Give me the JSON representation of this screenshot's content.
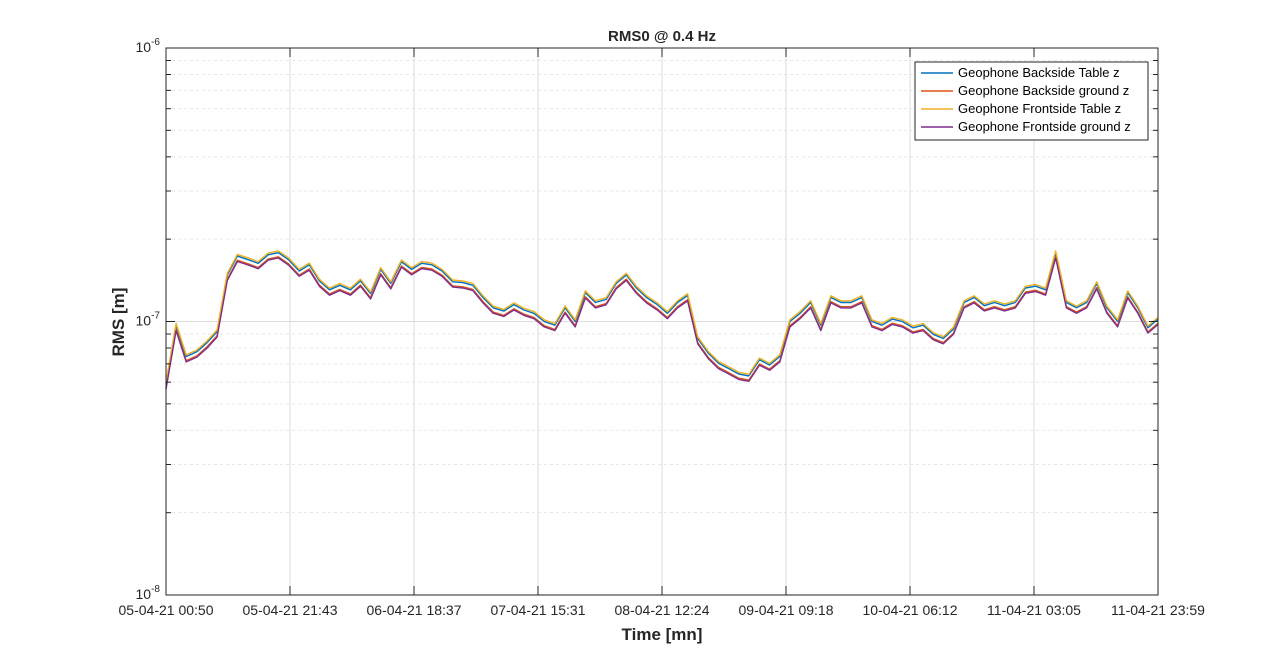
{
  "chart_data": {
    "type": "line",
    "title": "RMS0 @ 0.4 Hz",
    "xlabel": "Time [mn]",
    "ylabel": "RMS [m]",
    "yscale": "log",
    "ylim": [
      1e-08,
      1e-06
    ],
    "y_tick_labels": [
      "10^-8",
      "10^-7",
      "10^-6"
    ],
    "y_ticks": [
      {
        "value": 1e-08,
        "base": "10",
        "exp": "-8"
      },
      {
        "value": 1e-07,
        "base": "10",
        "exp": "-7"
      },
      {
        "value": 1e-06,
        "base": "10",
        "exp": "-6"
      }
    ],
    "x_tick_labels": [
      "05-04-21 00:50",
      "05-04-21 21:43",
      "06-04-21 18:37",
      "07-04-21 15:31",
      "08-04-21 12:24",
      "09-04-21 09:18",
      "10-04-21 06:12",
      "11-04-21 03:05",
      "11-04-21 23:59"
    ],
    "grid": true,
    "legend_position": "top-right",
    "series": [
      {
        "name": "Geophone Backside Table z",
        "color": "#0072BD",
        "offset": 1.02
      },
      {
        "name": "Geophone Backside ground z",
        "color": "#D95319",
        "offset": 0.985
      },
      {
        "name": "Geophone Frontside Table z",
        "color": "#EDB120",
        "offset": 1.035
      },
      {
        "name": "Geophone Frontside ground z",
        "color": "#7E2F8E",
        "offset": 0.975
      }
    ],
    "x": [
      0,
      1.7,
      3.4,
      5.2,
      6.9,
      8.6,
      10.3,
      12.0,
      13.8,
      15.5,
      17.2,
      18.9,
      20.6,
      22.4,
      24.1,
      25.8,
      27.5,
      29.2,
      31.0,
      32.7,
      34.4,
      36.1,
      37.8,
      39.6,
      41.3,
      43.0,
      44.7,
      46.4,
      48.2,
      49.9,
      51.6,
      53.3,
      55.0,
      56.8,
      58.5,
      60.2,
      61.9,
      63.6,
      65.4,
      67.1,
      68.8,
      70.5,
      72.2,
      74.0,
      75.7,
      77.4,
      79.1,
      80.8,
      82.6,
      84.3,
      86.0,
      87.7,
      89.4,
      91.2,
      92.9,
      94.6,
      96.3,
      98.0,
      99.8,
      101.5,
      103.2,
      104.9,
      106.6,
      108.4,
      110.1,
      111.8,
      113.5,
      115.2,
      117.0,
      118.7,
      120.4,
      122.1,
      123.8,
      125.6,
      127.3,
      129.0,
      130.7,
      132.4,
      134.2,
      135.9,
      137.6,
      139.3,
      141.0,
      142.8,
      144.5,
      146.2,
      147.9,
      149.6,
      151.4,
      153.1,
      154.8,
      156.5,
      158.2,
      160.0,
      161.7,
      163.4,
      165.1,
      166.8
    ],
    "values": [
      5.8e-08,
      9.5e-08,
      7.3e-08,
      7.6e-08,
      8.2e-08,
      9e-08,
      1.45e-07,
      1.7e-07,
      1.65e-07,
      1.6e-07,
      1.72e-07,
      1.75e-07,
      1.65e-07,
      1.5e-07,
      1.58e-07,
      1.38e-07,
      1.28e-07,
      1.33e-07,
      1.28e-07,
      1.38e-07,
      1.24e-07,
      1.52e-07,
      1.35e-07,
      1.62e-07,
      1.52e-07,
      1.6e-07,
      1.58e-07,
      1.5e-07,
      1.37e-07,
      1.36e-07,
      1.33e-07,
      1.2e-07,
      1.1e-07,
      1.07e-07,
      1.13e-07,
      1.08e-07,
      1.05e-07,
      9.8e-08,
      9.5e-08,
      1.1e-07,
      9.8e-08,
      1.25e-07,
      1.15e-07,
      1.18e-07,
      1.35e-07,
      1.45e-07,
      1.3e-07,
      1.2e-07,
      1.13e-07,
      1.05e-07,
      1.15e-07,
      1.22e-07,
      8.5e-08,
      7.5e-08,
      6.9e-08,
      6.6e-08,
      6.3e-08,
      6.2e-08,
      7.1e-08,
      6.8e-08,
      7.3e-08,
      9.8e-08,
      1.05e-07,
      1.15e-07,
      9.5e-08,
      1.2e-07,
      1.15e-07,
      1.15e-07,
      1.2e-07,
      9.8e-08,
      9.5e-08,
      1e-07,
      9.8e-08,
      9.3e-08,
      9.5e-08,
      8.8e-08,
      8.5e-08,
      9.2e-08,
      1.15e-07,
      1.2e-07,
      1.12e-07,
      1.15e-07,
      1.12e-07,
      1.15e-07,
      1.3e-07,
      1.32e-07,
      1.28e-07,
      1.75e-07,
      1.15e-07,
      1.1e-07,
      1.15e-07,
      1.35e-07,
      1.1e-07,
      9.8e-08,
      1.25e-07,
      1.1e-07,
      9.3e-08,
      1e-07
    ]
  }
}
